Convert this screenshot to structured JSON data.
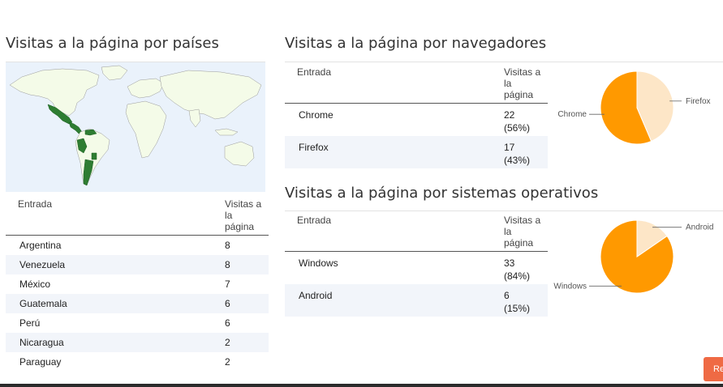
{
  "countries": {
    "title": "Visitas a la página por países",
    "col_entry": "Entrada",
    "col_visits": "Visitas a la página",
    "rows": [
      {
        "name": "Argentina",
        "value": "8"
      },
      {
        "name": "Venezuela",
        "value": "8"
      },
      {
        "name": "México",
        "value": "7"
      },
      {
        "name": "Guatemala",
        "value": "6"
      },
      {
        "name": "Perú",
        "value": "6"
      },
      {
        "name": "Nicaragua",
        "value": "2"
      },
      {
        "name": "Paraguay",
        "value": "2"
      }
    ]
  },
  "browsers": {
    "title": "Visitas a la página por navegadores",
    "col_entry": "Entrada",
    "col_visits": "Visitas a la página",
    "rows": [
      {
        "name": "Chrome",
        "value": "22",
        "pct": "(56%)"
      },
      {
        "name": "Firefox",
        "value": "17",
        "pct": "(43%)"
      }
    ],
    "chart": {
      "labels": [
        "Chrome",
        "Firefox"
      ],
      "values": [
        22,
        17
      ],
      "colors": [
        "#ff9900",
        "#fde6c7"
      ]
    }
  },
  "os": {
    "title": "Visitas a la página por sistemas operativos",
    "col_entry": "Entrada",
    "col_visits": "Visitas a la página",
    "rows": [
      {
        "name": "Windows",
        "value": "33",
        "pct": "(84%)"
      },
      {
        "name": "Android",
        "value": "6",
        "pct": "(15%)"
      }
    ],
    "chart": {
      "labels": [
        "Windows",
        "Android"
      ],
      "values": [
        33,
        6
      ],
      "colors": [
        "#ff9900",
        "#fde6c7"
      ]
    }
  },
  "button": {
    "label": "Re"
  },
  "map": {
    "highlight_color": "#2e7d32",
    "land_color": "#f4fbe8",
    "water_color": "#eaf2fb"
  }
}
